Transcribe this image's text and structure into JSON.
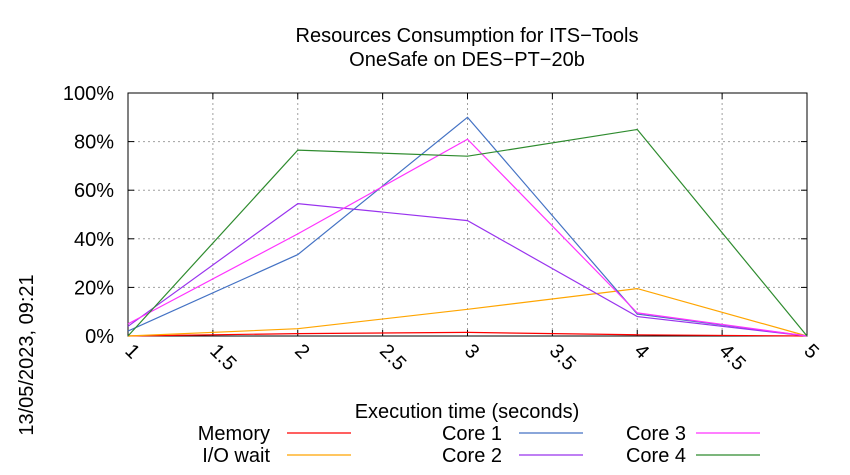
{
  "chart_data": {
    "type": "line",
    "title_lines": [
      "Resources Consumption for ITS−Tools",
      "OneSafe on DES−PT−20b"
    ],
    "xlabel": "Execution time (seconds)",
    "ylabel": "",
    "xlim": [
      1,
      5
    ],
    "ylim": [
      0,
      100
    ],
    "x_ticks": [
      "1",
      "1.5",
      "2",
      "2.5",
      "3",
      "3.5",
      "4",
      "4.5",
      "5"
    ],
    "y_ticks": [
      "0%",
      "20%",
      "40%",
      "60%",
      "80%",
      "100%"
    ],
    "grid": true,
    "legend_position": "bottom",
    "timestamp": "13/05/2023, 09:21",
    "series": [
      {
        "name": "Memory",
        "color": "#ff0000",
        "x": [
          1,
          2,
          3,
          4,
          5
        ],
        "y": [
          0,
          1,
          1.5,
          0.5,
          0
        ]
      },
      {
        "name": "I/O wait",
        "color": "#ffa500",
        "x": [
          1,
          2,
          3,
          4,
          5
        ],
        "y": [
          0,
          3,
          11,
          19.5,
          0
        ]
      },
      {
        "name": "Core 1",
        "color": "#4472c4",
        "x": [
          1,
          2,
          3,
          4,
          5
        ],
        "y": [
          2,
          33.5,
          90,
          9,
          0
        ]
      },
      {
        "name": "Core 2",
        "color": "#9933ee",
        "x": [
          1,
          2,
          3,
          4,
          5
        ],
        "y": [
          4,
          54.5,
          47.5,
          8,
          0
        ]
      },
      {
        "name": "Core 3",
        "color": "#ff33ff",
        "x": [
          1,
          2,
          3,
          4,
          5
        ],
        "y": [
          5,
          42,
          81,
          9.5,
          0
        ]
      },
      {
        "name": "Core 4",
        "color": "#2e8b2e",
        "x": [
          1,
          2,
          3,
          4,
          5
        ],
        "y": [
          0,
          76.5,
          74,
          85,
          0
        ]
      }
    ]
  }
}
